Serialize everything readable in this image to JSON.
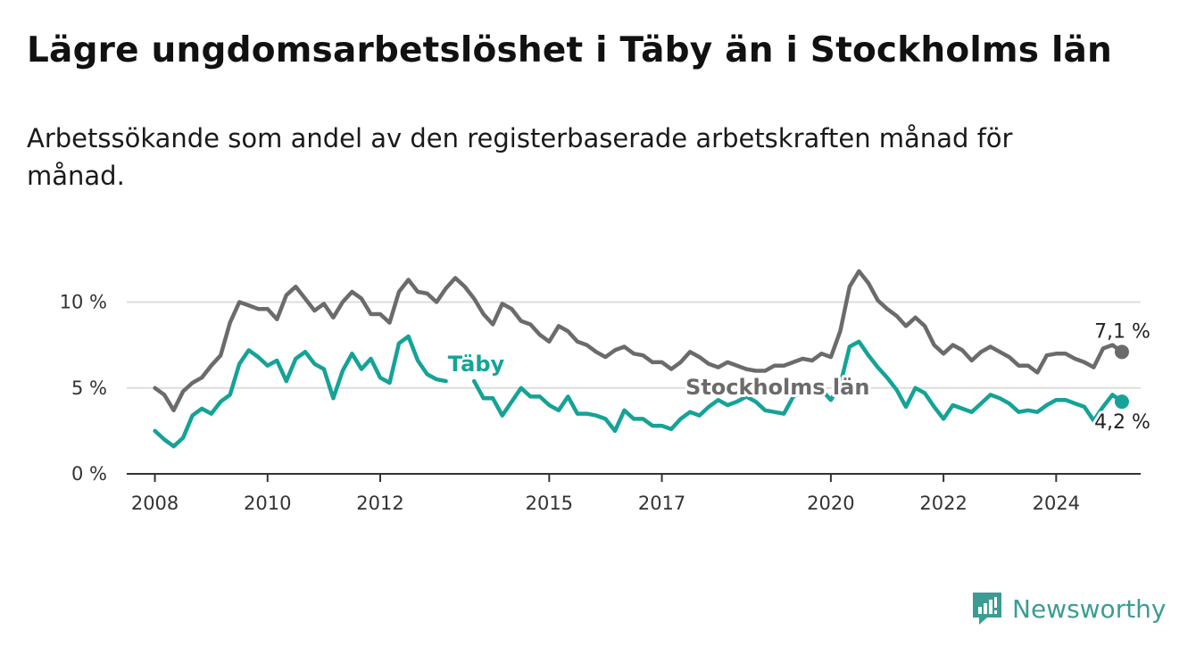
{
  "header": {
    "title": "Lägre ungdomsarbetslöshet i Täby än i Stockholms län",
    "subtitle": "Arbetssökande som andel av den registerbaserade arbetskraften månad för månad."
  },
  "brand": {
    "name": "Newsworthy",
    "icon": "newsworthy-logo-icon",
    "color": "#3c9c94"
  },
  "chart_data": {
    "type": "line",
    "title": "Lägre ungdomsarbetslöshet i Täby än i Stockholms län",
    "subtitle": "Arbetssökande som andel av den registerbaserade arbetskraften månad för månad.",
    "xlabel": "",
    "ylabel": "",
    "x_ticks": [
      "2008",
      "2010",
      "2012",
      "2015",
      "2017",
      "2020",
      "2022",
      "2024"
    ],
    "y_ticks": [
      "0 %",
      "5 %",
      "10 %"
    ],
    "y_tick_values": [
      0,
      5,
      10
    ],
    "ylim": [
      0,
      12
    ],
    "xlim": [
      "2007-07",
      "2025-07"
    ],
    "grid": true,
    "legend": "inline labels",
    "series": [
      {
        "name": "Stockholms län",
        "color": "#6b6b6b",
        "end_label": "7,1 %",
        "points": [
          [
            "2008-01",
            5.0
          ],
          [
            "2008-03",
            4.6
          ],
          [
            "2008-05",
            3.7
          ],
          [
            "2008-07",
            4.8
          ],
          [
            "2008-09",
            5.3
          ],
          [
            "2008-11",
            5.6
          ],
          [
            "2009-01",
            6.3
          ],
          [
            "2009-03",
            6.9
          ],
          [
            "2009-05",
            8.8
          ],
          [
            "2009-07",
            10.0
          ],
          [
            "2009-09",
            9.8
          ],
          [
            "2009-11",
            9.6
          ],
          [
            "2010-01",
            9.6
          ],
          [
            "2010-03",
            9.0
          ],
          [
            "2010-05",
            10.4
          ],
          [
            "2010-07",
            10.9
          ],
          [
            "2010-09",
            10.2
          ],
          [
            "2010-11",
            9.5
          ],
          [
            "2011-01",
            9.9
          ],
          [
            "2011-03",
            9.1
          ],
          [
            "2011-05",
            10.0
          ],
          [
            "2011-07",
            10.6
          ],
          [
            "2011-09",
            10.2
          ],
          [
            "2011-11",
            9.3
          ],
          [
            "2012-01",
            9.3
          ],
          [
            "2012-03",
            8.8
          ],
          [
            "2012-05",
            10.6
          ],
          [
            "2012-07",
            11.3
          ],
          [
            "2012-09",
            10.6
          ],
          [
            "2012-11",
            10.5
          ],
          [
            "2013-01",
            10.0
          ],
          [
            "2013-03",
            10.8
          ],
          [
            "2013-05",
            11.4
          ],
          [
            "2013-07",
            10.9
          ],
          [
            "2013-09",
            10.2
          ],
          [
            "2013-11",
            9.3
          ],
          [
            "2014-01",
            8.7
          ],
          [
            "2014-03",
            9.9
          ],
          [
            "2014-05",
            9.6
          ],
          [
            "2014-07",
            8.9
          ],
          [
            "2014-09",
            8.7
          ],
          [
            "2014-11",
            8.1
          ],
          [
            "2015-01",
            7.7
          ],
          [
            "2015-03",
            8.6
          ],
          [
            "2015-05",
            8.3
          ],
          [
            "2015-07",
            7.7
          ],
          [
            "2015-09",
            7.5
          ],
          [
            "2015-11",
            7.1
          ],
          [
            "2016-01",
            6.8
          ],
          [
            "2016-03",
            7.2
          ],
          [
            "2016-05",
            7.4
          ],
          [
            "2016-07",
            7.0
          ],
          [
            "2016-09",
            6.9
          ],
          [
            "2016-11",
            6.5
          ],
          [
            "2017-01",
            6.5
          ],
          [
            "2017-03",
            6.1
          ],
          [
            "2017-05",
            6.5
          ],
          [
            "2017-07",
            7.1
          ],
          [
            "2017-09",
            6.8
          ],
          [
            "2017-11",
            6.4
          ],
          [
            "2018-01",
            6.2
          ],
          [
            "2018-03",
            6.5
          ],
          [
            "2018-05",
            6.3
          ],
          [
            "2018-07",
            6.1
          ],
          [
            "2018-09",
            6.0
          ],
          [
            "2018-11",
            6.0
          ],
          [
            "2019-01",
            6.3
          ],
          [
            "2019-03",
            6.3
          ],
          [
            "2019-05",
            6.5
          ],
          [
            "2019-07",
            6.7
          ],
          [
            "2019-09",
            6.6
          ],
          [
            "2019-11",
            7.0
          ],
          [
            "2020-01",
            6.8
          ],
          [
            "2020-03",
            8.3
          ],
          [
            "2020-05",
            10.9
          ],
          [
            "2020-07",
            11.8
          ],
          [
            "2020-09",
            11.1
          ],
          [
            "2020-11",
            10.1
          ],
          [
            "2021-01",
            9.6
          ],
          [
            "2021-03",
            9.2
          ],
          [
            "2021-05",
            8.6
          ],
          [
            "2021-07",
            9.1
          ],
          [
            "2021-09",
            8.6
          ],
          [
            "2021-11",
            7.5
          ],
          [
            "2022-01",
            7.0
          ],
          [
            "2022-03",
            7.5
          ],
          [
            "2022-05",
            7.2
          ],
          [
            "2022-07",
            6.6
          ],
          [
            "2022-09",
            7.1
          ],
          [
            "2022-11",
            7.4
          ],
          [
            "2023-01",
            7.1
          ],
          [
            "2023-03",
            6.8
          ],
          [
            "2023-05",
            6.3
          ],
          [
            "2023-07",
            6.3
          ],
          [
            "2023-09",
            5.9
          ],
          [
            "2023-11",
            6.9
          ],
          [
            "2024-01",
            7.0
          ],
          [
            "2024-03",
            7.0
          ],
          [
            "2024-05",
            6.7
          ],
          [
            "2024-07",
            6.5
          ],
          [
            "2024-09",
            6.2
          ],
          [
            "2024-11",
            7.3
          ],
          [
            "2025-01",
            7.5
          ],
          [
            "2025-03",
            7.1
          ]
        ]
      },
      {
        "name": "Täby",
        "color": "#14a396",
        "end_label": "4,2 %",
        "points": [
          [
            "2008-01",
            2.5
          ],
          [
            "2008-03",
            2.0
          ],
          [
            "2008-05",
            1.6
          ],
          [
            "2008-07",
            2.1
          ],
          [
            "2008-09",
            3.4
          ],
          [
            "2008-11",
            3.8
          ],
          [
            "2009-01",
            3.5
          ],
          [
            "2009-03",
            4.2
          ],
          [
            "2009-05",
            4.6
          ],
          [
            "2009-07",
            6.4
          ],
          [
            "2009-09",
            7.2
          ],
          [
            "2009-11",
            6.8
          ],
          [
            "2010-01",
            6.3
          ],
          [
            "2010-03",
            6.6
          ],
          [
            "2010-05",
            5.4
          ],
          [
            "2010-07",
            6.7
          ],
          [
            "2010-09",
            7.1
          ],
          [
            "2010-11",
            6.4
          ],
          [
            "2011-01",
            6.1
          ],
          [
            "2011-03",
            4.4
          ],
          [
            "2011-05",
            6.0
          ],
          [
            "2011-07",
            7.0
          ],
          [
            "2011-09",
            6.1
          ],
          [
            "2011-11",
            6.7
          ],
          [
            "2012-01",
            5.6
          ],
          [
            "2012-03",
            5.3
          ],
          [
            "2012-05",
            7.6
          ],
          [
            "2012-07",
            8.0
          ],
          [
            "2012-09",
            6.6
          ],
          [
            "2012-11",
            5.8
          ],
          [
            "2013-01",
            5.5
          ],
          [
            "2013-03",
            5.4
          ],
          [
            "2013-09",
            5.4
          ],
          [
            "2013-11",
            4.4
          ],
          [
            "2014-01",
            4.4
          ],
          [
            "2014-03",
            3.4
          ],
          [
            "2014-05",
            4.2
          ],
          [
            "2014-07",
            5.0
          ],
          [
            "2014-09",
            4.5
          ],
          [
            "2014-11",
            4.5
          ],
          [
            "2015-01",
            4.0
          ],
          [
            "2015-03",
            3.7
          ],
          [
            "2015-05",
            4.5
          ],
          [
            "2015-07",
            3.5
          ],
          [
            "2015-09",
            3.5
          ],
          [
            "2015-11",
            3.4
          ],
          [
            "2016-01",
            3.2
          ],
          [
            "2016-03",
            2.5
          ],
          [
            "2016-05",
            3.7
          ],
          [
            "2016-07",
            3.2
          ],
          [
            "2016-09",
            3.2
          ],
          [
            "2016-11",
            2.8
          ],
          [
            "2017-01",
            2.8
          ],
          [
            "2017-03",
            2.6
          ],
          [
            "2017-05",
            3.2
          ],
          [
            "2017-07",
            3.6
          ],
          [
            "2017-09",
            3.4
          ],
          [
            "2017-11",
            3.9
          ],
          [
            "2018-01",
            4.3
          ],
          [
            "2018-03",
            4.0
          ],
          [
            "2018-05",
            4.2
          ],
          [
            "2018-07",
            4.5
          ],
          [
            "2018-09",
            4.2
          ],
          [
            "2018-11",
            3.7
          ],
          [
            "2019-01",
            3.6
          ],
          [
            "2019-03",
            3.5
          ],
          [
            "2019-05",
            4.5
          ],
          [
            "2019-07",
            4.8
          ],
          [
            "2019-09",
            4.8
          ],
          [
            "2019-11",
            4.9
          ],
          [
            "2020-01",
            4.3
          ],
          [
            "2020-03",
            5.2
          ],
          [
            "2020-05",
            7.4
          ],
          [
            "2020-07",
            7.7
          ],
          [
            "2020-09",
            6.9
          ],
          [
            "2020-11",
            6.2
          ],
          [
            "2021-01",
            5.6
          ],
          [
            "2021-03",
            4.9
          ],
          [
            "2021-05",
            3.9
          ],
          [
            "2021-07",
            5.0
          ],
          [
            "2021-09",
            4.7
          ],
          [
            "2021-11",
            3.9
          ],
          [
            "2022-01",
            3.2
          ],
          [
            "2022-03",
            4.0
          ],
          [
            "2022-05",
            3.8
          ],
          [
            "2022-07",
            3.6
          ],
          [
            "2022-09",
            4.1
          ],
          [
            "2022-11",
            4.6
          ],
          [
            "2023-01",
            4.4
          ],
          [
            "2023-03",
            4.1
          ],
          [
            "2023-05",
            3.6
          ],
          [
            "2023-07",
            3.7
          ],
          [
            "2023-09",
            3.6
          ],
          [
            "2023-11",
            4.0
          ],
          [
            "2024-01",
            4.3
          ],
          [
            "2024-03",
            4.3
          ],
          [
            "2024-05",
            4.1
          ],
          [
            "2024-07",
            3.9
          ],
          [
            "2024-09",
            3.1
          ],
          [
            "2024-11",
            3.9
          ],
          [
            "2025-01",
            4.6
          ],
          [
            "2025-03",
            4.2
          ]
        ]
      }
    ]
  }
}
